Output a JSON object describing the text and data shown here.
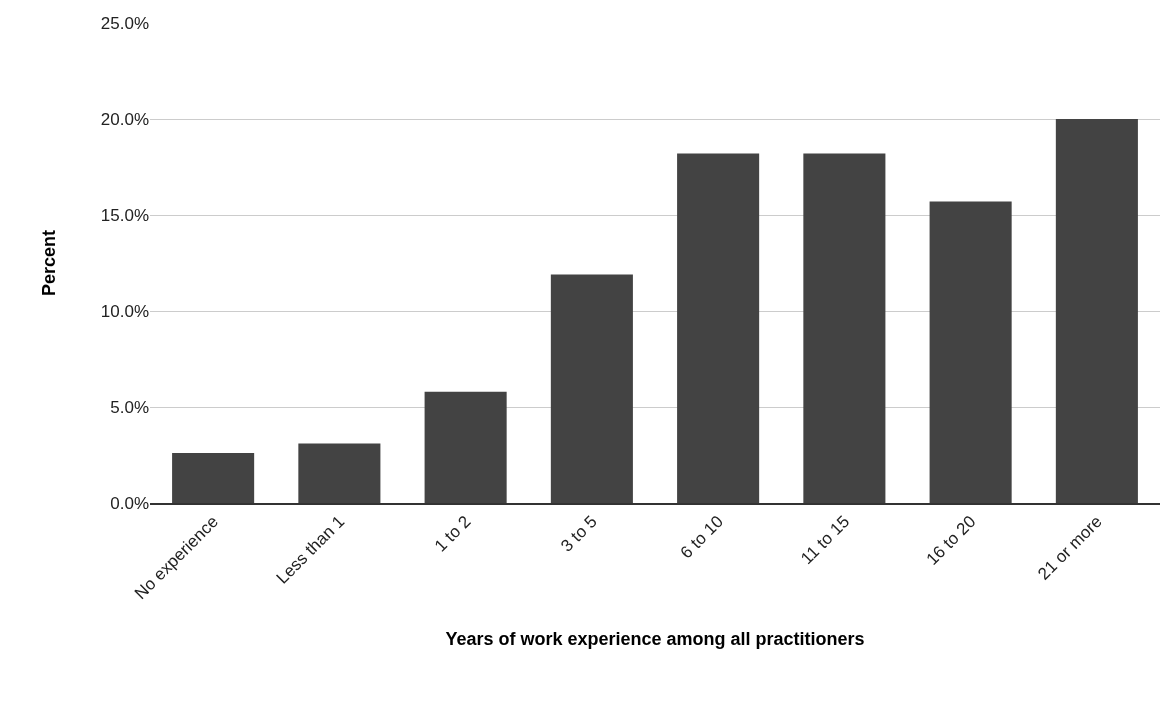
{
  "chart_data": {
    "type": "bar",
    "xlabel": "Years of work experience among all practitioners",
    "ylabel": "Percent",
    "categories": [
      "No experience",
      "Less than 1",
      "1 to 2",
      "3 to 5",
      "6 to 10",
      "11 to 15",
      "16 to 20",
      "21 or more"
    ],
    "values": [
      2.6,
      3.1,
      5.8,
      11.9,
      18.2,
      18.2,
      15.7,
      20.0
    ],
    "color": "#434343",
    "ylim": [
      0,
      25
    ],
    "yticks": [
      {
        "value": 0,
        "label": "0.0%"
      },
      {
        "value": 5,
        "label": "5.0%"
      },
      {
        "value": 10,
        "label": "10.0%"
      },
      {
        "value": 15,
        "label": "15.0%"
      },
      {
        "value": 20,
        "label": "20.0%"
      },
      {
        "value": 25,
        "label": "25.0%"
      }
    ],
    "grid": "y",
    "legend": false
  }
}
